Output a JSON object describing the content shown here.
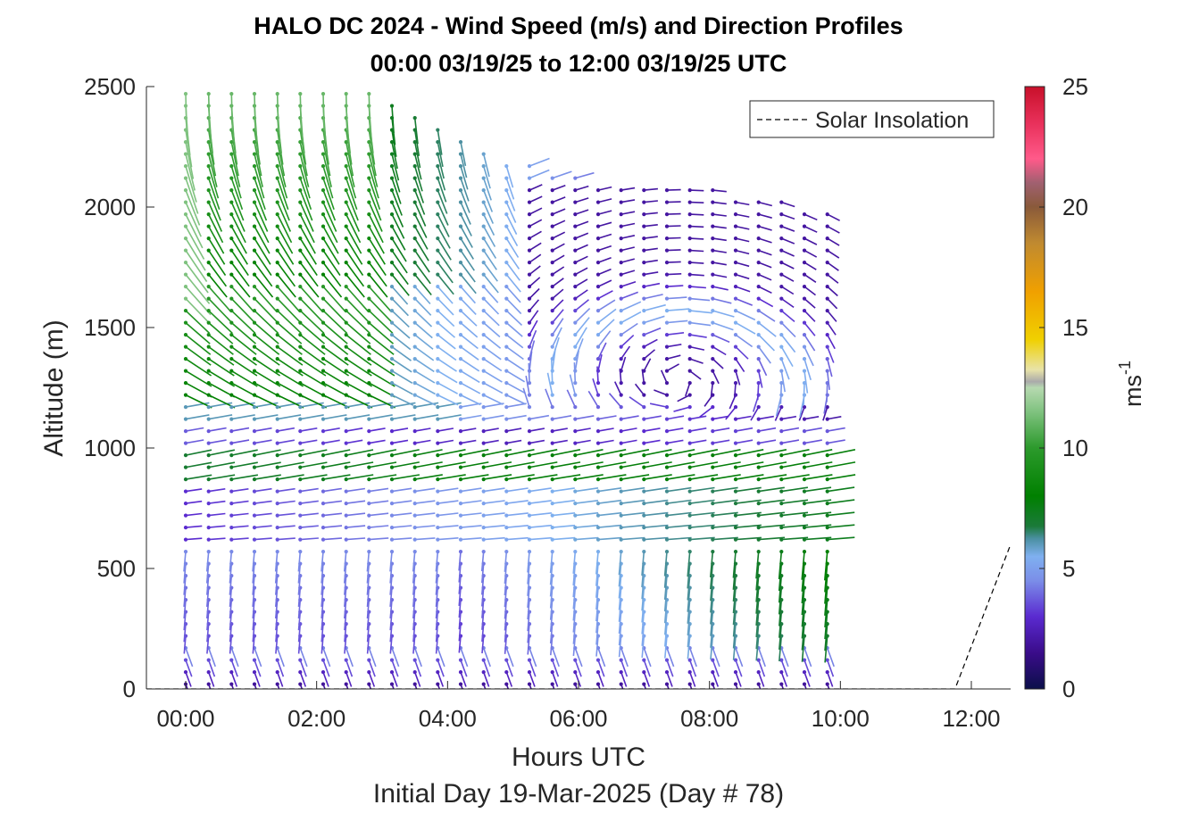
{
  "chart_data": {
    "type": "quiver",
    "title": "HALO DC 2024 - Wind Speed (m/s) and Direction Profiles",
    "subtitle": "00:00 03/19/25 to 12:00 03/19/25  UTC",
    "xlabel": "Hours UTC",
    "xsublabel": "Initial Day 19-Mar-2025 (Day # 78)",
    "ylabel": "Altitude (m)",
    "xlim": [
      -0.6,
      12.6
    ],
    "ylim": [
      0,
      2500
    ],
    "xticks": [
      0,
      2,
      4,
      6,
      8,
      10,
      12
    ],
    "xtick_labels": [
      "00:00",
      "02:00",
      "04:00",
      "06:00",
      "08:00",
      "10:00",
      "12:00"
    ],
    "yticks": [
      0,
      500,
      1000,
      1500,
      2000,
      2500
    ],
    "ytick_labels": [
      "0",
      "500",
      "1000",
      "1500",
      "2000",
      "2500"
    ],
    "legend": {
      "entries": [
        "Solar Insolation"
      ],
      "placement": "top-right",
      "line_style": "dashed"
    },
    "colorbar": {
      "label": "ms",
      "label_exponent": "-1",
      "range": [
        0,
        25
      ],
      "ticks": [
        0,
        5,
        10,
        15,
        20,
        25
      ],
      "tick_labels": [
        "0",
        "5",
        "10",
        "15",
        "20",
        "25"
      ]
    },
    "profile_times_hours": [
      0.0,
      0.35,
      0.7,
      1.05,
      1.4,
      1.75,
      2.1,
      2.45,
      2.8,
      3.15,
      3.5,
      3.85,
      4.2,
      4.55,
      4.9,
      5.25,
      5.6,
      5.95,
      6.3,
      6.65,
      7.0,
      7.35,
      7.7,
      8.05,
      8.4,
      8.75,
      9.1,
      9.45,
      9.8
    ],
    "profile_top_altitudes_m": [
      2500,
      2500,
      2500,
      2500,
      2500,
      2500,
      2500,
      2500,
      2500,
      2450,
      2380,
      2330,
      2270,
      2230,
      2200,
      2170,
      2140,
      2120,
      2100,
      2100,
      2100,
      2100,
      2100,
      2080,
      2050,
      2030,
      2020,
      2010,
      2000
    ],
    "solar_insolation": {
      "x": [
        -0.6,
        11.75,
        12.6
      ],
      "y": [
        0,
        0,
        600
      ]
    }
  }
}
